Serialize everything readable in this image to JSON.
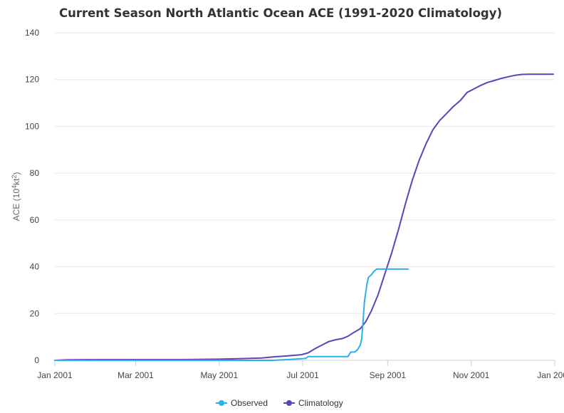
{
  "chart_data": {
    "type": "line",
    "title": "Current Season North Atlantic Ocean ACE (1991-2020 Climatology)",
    "xlabel": "",
    "ylabel_main": "ACE (10",
    "ylabel_sup": "4",
    "ylabel_tail": "kt",
    "ylabel_sup2": "2",
    "ylabel_close": ")",
    "ylim": [
      0,
      140
    ],
    "yticks": [
      "0",
      "20",
      "40",
      "60",
      "80",
      "100",
      "120",
      "140"
    ],
    "xticks": [
      "Jan 2001",
      "Mar 2001",
      "May 2001",
      "Jul 2001",
      "Sep 2001",
      "Nov 2001",
      "Jan 2002"
    ],
    "grid": true,
    "legend_position": "bottom",
    "series": [
      {
        "name": "Observed",
        "color": "#2ab0ec",
        "points": [
          [
            "2001-01-01",
            0
          ],
          [
            "2001-06-10",
            0
          ],
          [
            "2001-06-25",
            0.5
          ],
          [
            "2001-07-03",
            0.8
          ],
          [
            "2001-07-05",
            1.6
          ],
          [
            "2001-07-20",
            1.6
          ],
          [
            "2001-08-01",
            1.6
          ],
          [
            "2001-08-03",
            1.6
          ],
          [
            "2001-08-04",
            2.5
          ],
          [
            "2001-08-05",
            3.5
          ],
          [
            "2001-08-08",
            3.6
          ],
          [
            "2001-08-10",
            4.5
          ],
          [
            "2001-08-12",
            6.5
          ],
          [
            "2001-08-13",
            9
          ],
          [
            "2001-08-14",
            16
          ],
          [
            "2001-08-15",
            25
          ],
          [
            "2001-08-16",
            29
          ],
          [
            "2001-08-17",
            33
          ],
          [
            "2001-08-18",
            35.5
          ],
          [
            "2001-08-20",
            36.5
          ],
          [
            "2001-08-22",
            38
          ],
          [
            "2001-08-24",
            39
          ],
          [
            "2001-09-01",
            39
          ],
          [
            "2001-09-16",
            39
          ]
        ]
      },
      {
        "name": "Climatology",
        "color": "#5646b9",
        "points": [
          [
            "2001-01-01",
            0
          ],
          [
            "2001-01-10",
            0.2
          ],
          [
            "2001-02-01",
            0.3
          ],
          [
            "2001-03-01",
            0.3
          ],
          [
            "2001-04-01",
            0.3
          ],
          [
            "2001-04-15",
            0.4
          ],
          [
            "2001-05-01",
            0.5
          ],
          [
            "2001-05-15",
            0.7
          ],
          [
            "2001-06-01",
            1.0
          ],
          [
            "2001-06-10",
            1.5
          ],
          [
            "2001-06-20",
            1.9
          ],
          [
            "2001-06-30",
            2.4
          ],
          [
            "2001-07-05",
            3.2
          ],
          [
            "2001-07-10",
            5.0
          ],
          [
            "2001-07-15",
            6.5
          ],
          [
            "2001-07-20",
            8.0
          ],
          [
            "2001-07-25",
            8.8
          ],
          [
            "2001-07-30",
            9.3
          ],
          [
            "2001-08-03",
            10.3
          ],
          [
            "2001-08-07",
            11.8
          ],
          [
            "2001-08-12",
            13.5
          ],
          [
            "2001-08-16",
            16.5
          ],
          [
            "2001-08-20",
            21.0
          ],
          [
            "2001-08-25",
            28.0
          ],
          [
            "2001-08-30",
            37.0
          ],
          [
            "2001-09-04",
            46.0
          ],
          [
            "2001-09-09",
            56.0
          ],
          [
            "2001-09-14",
            67.0
          ],
          [
            "2001-09-19",
            77.0
          ],
          [
            "2001-09-24",
            85.5
          ],
          [
            "2001-09-29",
            92.5
          ],
          [
            "2001-10-04",
            98.5
          ],
          [
            "2001-10-09",
            102.5
          ],
          [
            "2001-10-14",
            105.5
          ],
          [
            "2001-10-19",
            108.5
          ],
          [
            "2001-10-24",
            111.0
          ],
          [
            "2001-10-29",
            114.5
          ],
          [
            "2001-11-03",
            116.0
          ],
          [
            "2001-11-08",
            117.5
          ],
          [
            "2001-11-13",
            118.8
          ],
          [
            "2001-11-18",
            119.6
          ],
          [
            "2001-11-23",
            120.5
          ],
          [
            "2001-11-28",
            121.2
          ],
          [
            "2001-12-03",
            121.8
          ],
          [
            "2001-12-08",
            122.2
          ],
          [
            "2001-12-13",
            122.3
          ],
          [
            "2001-12-31",
            122.3
          ]
        ]
      }
    ]
  }
}
